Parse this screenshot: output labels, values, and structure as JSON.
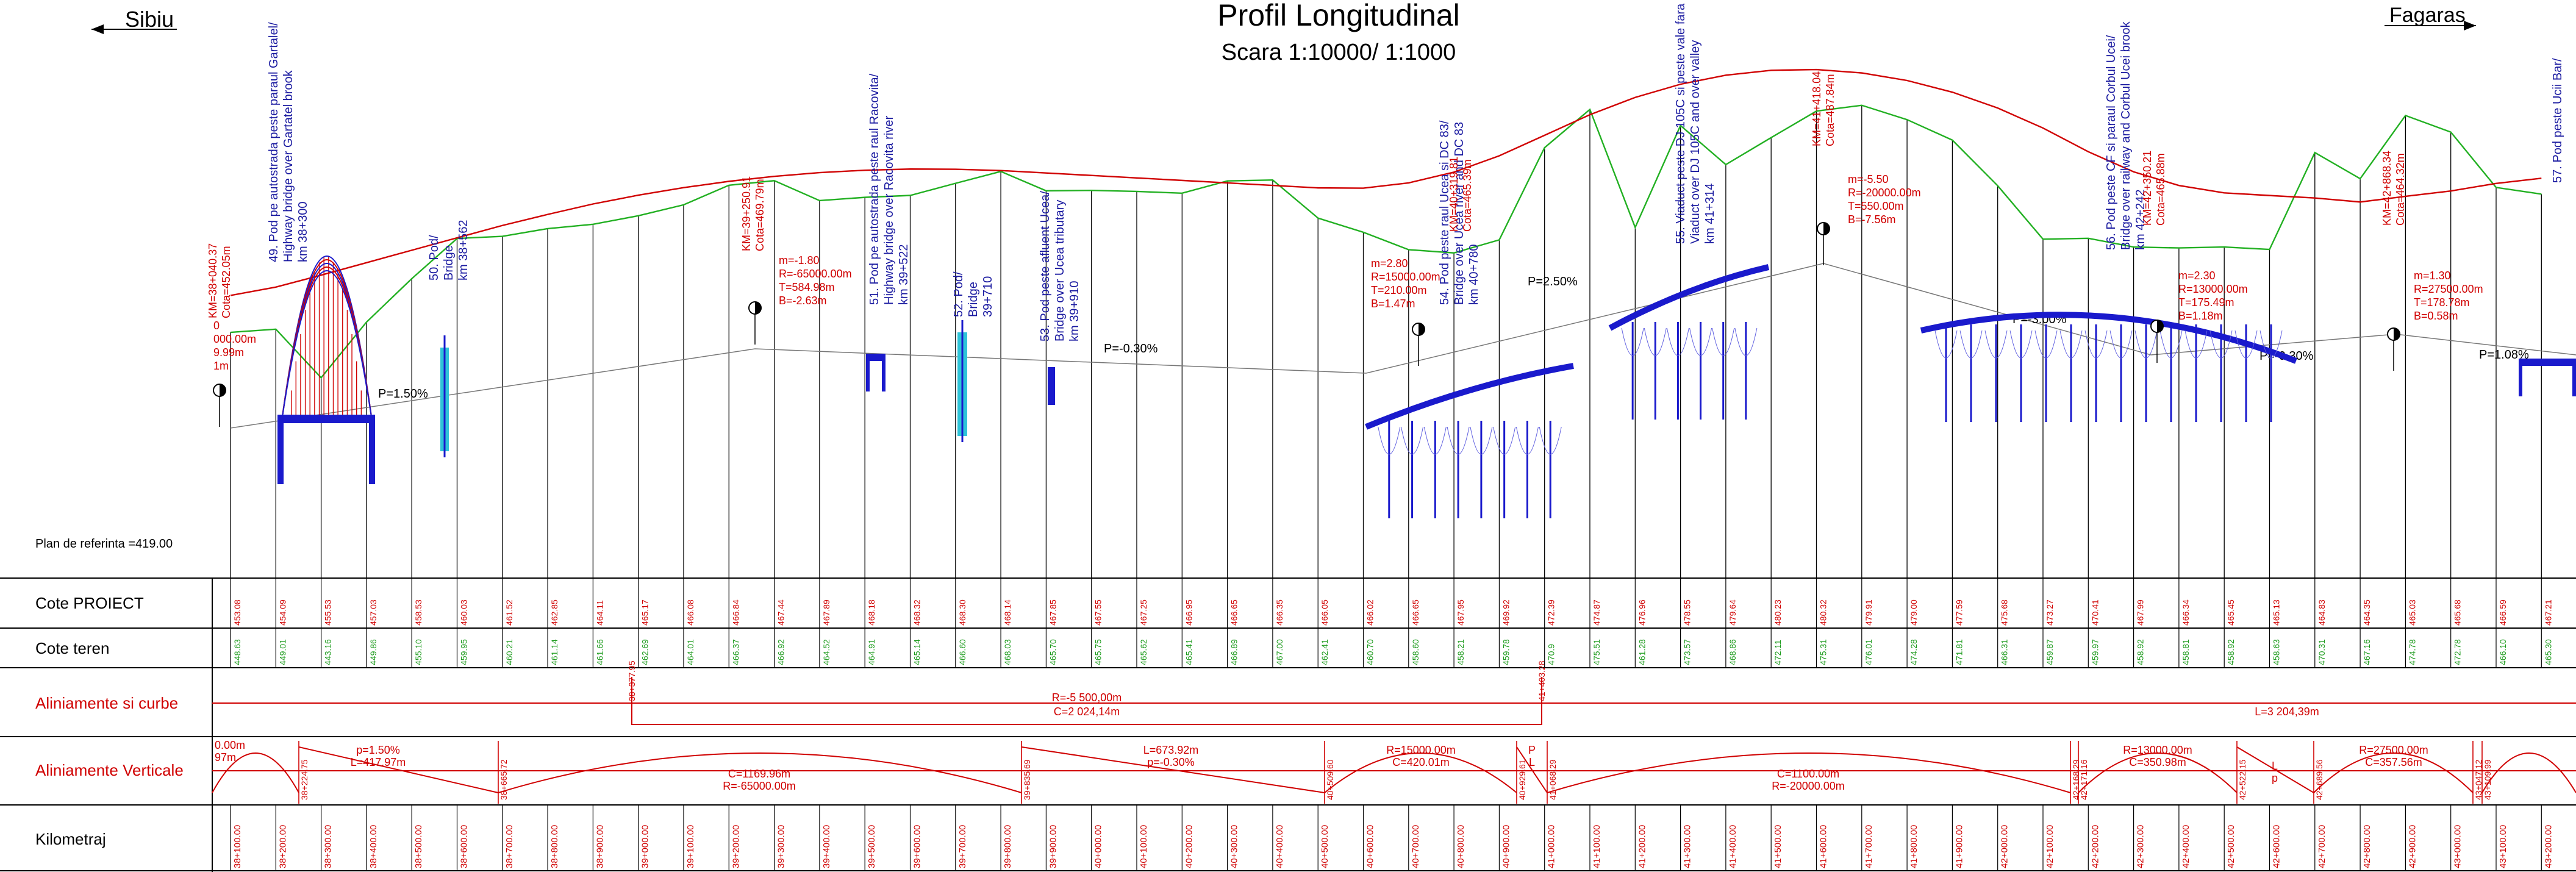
{
  "header": {
    "left_city": "Sibiu",
    "right_city": "Fagaras",
    "title": "Profil Longitudinal",
    "scale": "Scara 1:10000/ 1:1000"
  },
  "reference_plane": "Plan de referinta =419.00",
  "row_labels": {
    "cote_proiect": "Cote PROIECT",
    "cote_teren": "Cote teren",
    "aliniamente_curbe": "Aliniamente si curbe",
    "aliniamente_verticale": "Aliniamente Verticale",
    "kilometraj": "Kilometraj"
  },
  "colors": {
    "project_line": "#d00000",
    "terrain_line": "#22b022",
    "structure": "#1a1acc",
    "row_label": "#d00000",
    "grid": "#000000"
  },
  "structures": [
    {
      "id": "s49",
      "l1": "49. Pod pe autostrada peste paraul Gartalel/",
      "l2": "Highway bridge over Gartatel brook",
      "l3": "km 38+300"
    },
    {
      "id": "s50",
      "l1": "50. Pod/",
      "l2": "Bridge",
      "l3": "km 38+562"
    },
    {
      "id": "s51",
      "l1": "51. Pod pe autostrada peste raul Racovita/",
      "l2": "Highway bridge over Racovita river",
      "l3": "km 39+522"
    },
    {
      "id": "s52",
      "l1": "52. Pod/",
      "l2": "Bridge",
      "l3": "39+710"
    },
    {
      "id": "s53",
      "l1": "53. Pod  peste afluent Ucea/",
      "l2": "Bridge over Ucea tributary",
      "l3": "km 39+910"
    },
    {
      "id": "s54",
      "l1": "54. Pod peste raul Ucea si DC 83/",
      "l2": "Bridge over Ucea river and DC 83",
      "l3": "km 40+780"
    },
    {
      "id": "s55",
      "l1": "55. Viaduct peste DJ 105C si peste vale fara nume/",
      "l2": "Viaduct over DJ 105C and over valley",
      "l3": "km 41+314"
    },
    {
      "id": "s56",
      "l1": "56. Pod peste CF si paraul Corbul Ucei/",
      "l2": "Bridge over railway and Corbul Ucei brook",
      "l3": "km 42+242"
    },
    {
      "id": "s57",
      "l1": "57. Pod peste Ucii Bar/",
      "l2": "",
      "l3": ""
    }
  ],
  "curve_notes": [
    {
      "id": "c0",
      "l1": "KM=38+040.37",
      "l2": "Cota=452.05m",
      "l3": "",
      "l4": ""
    },
    {
      "id": "c0b",
      "l1": "0",
      "l2": "000.00m",
      "l3": "9.99m",
      "l4": "1m"
    },
    {
      "id": "c1",
      "l1": "KM=39+250.91",
      "l2": "Cota=469.79m",
      "l3": "",
      "l4": ""
    },
    {
      "id": "c1b",
      "l1": "m=-1.80",
      "l2": "R=-65000.00m",
      "l3": "T=584.98m",
      "l4": "B=-2.63m"
    },
    {
      "id": "c2",
      "l1": "KM=40+319.81",
      "l2": "Cota=465.39m",
      "l3": "",
      "l4": ""
    },
    {
      "id": "c2b",
      "l1": "m=2.80",
      "l2": "R=15000.00m",
      "l3": "T=210.00m",
      "l4": "B=1.47m"
    },
    {
      "id": "c3",
      "l1": "KM=41+418.04",
      "l2": "Cota=487.84m",
      "l3": "",
      "l4": ""
    },
    {
      "id": "c3b",
      "l1": "m=-5.50",
      "l2": "R=-20000.00m",
      "l3": "T=550.00m",
      "l4": "B=-7.56m"
    },
    {
      "id": "c4",
      "l1": "KM=42+350.21",
      "l2": "Cota=465.88m",
      "l3": "",
      "l4": ""
    },
    {
      "id": "c4b",
      "l1": "m=2.30",
      "l2": "R=13000.00m",
      "l3": "T=175.49m",
      "l4": "B=1.18m"
    },
    {
      "id": "c5",
      "l1": "KM=42+868.34",
      "l2": "Cota=464.32m",
      "l3": "",
      "l4": ""
    },
    {
      "id": "c5b",
      "l1": "m=1.30",
      "l2": "R=27500.00m",
      "l3": "T=178.78m",
      "l4": "B=0.58m"
    }
  ],
  "grades": [
    {
      "id": "g1",
      "label": "P=1.50%"
    },
    {
      "id": "g2",
      "label": "P=-0.30%"
    },
    {
      "id": "g3",
      "label": "P=2.50%"
    },
    {
      "id": "g4",
      "label": "P=-3.00%"
    },
    {
      "id": "g5",
      "label": "P=-0.30%"
    },
    {
      "id": "g6",
      "label": "P=1.08%"
    }
  ],
  "cote_proiect": [
    "453.08",
    "454.09",
    "455.53",
    "457.03",
    "458.53",
    "460.03",
    "461.52",
    "462.85",
    "464.11",
    "465.17",
    "466.08",
    "466.84",
    "467.44",
    "467.89",
    "468.18",
    "468.32",
    "468.30",
    "468.14",
    "467.85",
    "467.55",
    "467.25",
    "466.95",
    "466.65",
    "466.35",
    "466.05",
    "466.02",
    "466.65",
    "467.95",
    "469.92",
    "472.39",
    "474.87",
    "476.96",
    "478.55",
    "479.64",
    "480.23",
    "480.32",
    "479.91",
    "479.00",
    "477.59",
    "475.68",
    "473.27",
    "470.41",
    "467.99",
    "466.34",
    "465.45",
    "465.13",
    "464.83",
    "464.35",
    "465.03",
    "465.68",
    "466.59",
    "467.21"
  ],
  "cote_teren": [
    "448.63",
    "449.01",
    "443.16",
    "449.86",
    "455.10",
    "459.95",
    "460.21",
    "461.14",
    "461.66",
    "462.69",
    "464.01",
    "466.37",
    "466.92",
    "464.52",
    "464.91",
    "465.14",
    "466.60",
    "468.03",
    "465.70",
    "465.75",
    "465.62",
    "465.41",
    "466.89",
    "467.00",
    "462.41",
    "460.70",
    "458.60",
    "458.21",
    "459.78",
    "470.9",
    "475.51",
    "461.28",
    "473.57",
    "468.86",
    "472.11",
    "475.31",
    "476.01",
    "474.28",
    "471.81",
    "466.31",
    "459.87",
    "459.97",
    "458.92",
    "458.81",
    "458.92",
    "458.63",
    "470.31",
    "467.16",
    "474.78",
    "472.78",
    "466.10",
    "465.30"
  ],
  "aliniamente_curbe": {
    "curve_R": "R=-5 500,00m",
    "curve_C": "C=2 024,14m",
    "tangent_L": "L=3 204,39m",
    "tick1": "38+377.95",
    "tick2": "41+403.28"
  },
  "aliniamente_verticale": [
    {
      "id": "v0",
      "t1": "0.00m",
      "t2": "97m"
    },
    {
      "id": "v1",
      "t1": "p=1.50%",
      "t2": "L=417.97m"
    },
    {
      "id": "v2",
      "t1": "C=1169.96m",
      "t2": "R=-65000.00m"
    },
    {
      "id": "v3",
      "t1": "L=673.92m",
      "t2": "p=-0.30%"
    },
    {
      "id": "v4",
      "t1": "R=15000.00m",
      "t2": "C=420.01m"
    },
    {
      "id": "v5",
      "t1": "P",
      "t2": "L"
    },
    {
      "id": "v6",
      "t1": "C=1100.00m",
      "t2": "R=-20000.00m"
    },
    {
      "id": "v7",
      "t1": "R=13000.00m",
      "t2": "C=350.98m"
    },
    {
      "id": "v8",
      "t1": "L",
      "t2": "p"
    },
    {
      "id": "v9",
      "t1": "R=27500.00m",
      "t2": "C=357.56m"
    }
  ],
  "vertical_ticks": [
    "38+224.75",
    "38+665.72",
    "39+835.69",
    "40+509.60",
    "40+929.61",
    "41+068.29",
    "42+168.29",
    "42+171.16",
    "42+522.15",
    "42+689.56",
    "43+047.12",
    "43+109.99"
  ],
  "kilometraj": [
    "38+100.00",
    "38+200.00",
    "38+300.00",
    "38+400.00",
    "38+500.00",
    "38+600.00",
    "38+700.00",
    "38+800.00",
    "38+900.00",
    "39+000.00",
    "39+100.00",
    "39+200.00",
    "39+300.00",
    "39+400.00",
    "39+500.00",
    "39+600.00",
    "39+700.00",
    "39+800.00",
    "39+900.00",
    "40+000.00",
    "40+100.00",
    "40+200.00",
    "40+300.00",
    "40+400.00",
    "40+500.00",
    "40+600.00",
    "40+700.00",
    "40+800.00",
    "40+900.00",
    "41+000.00",
    "41+100.00",
    "41+200.00",
    "41+300.00",
    "41+400.00",
    "41+500.00",
    "41+600.00",
    "41+700.00",
    "41+800.00",
    "41+900.00",
    "42+000.00",
    "42+100.00",
    "42+200.00",
    "42+300.00",
    "42+400.00",
    "42+500.00",
    "42+600.00",
    "42+700.00",
    "42+800.00",
    "42+900.00",
    "43+000.00",
    "43+100.00",
    "43+200.00"
  ]
}
